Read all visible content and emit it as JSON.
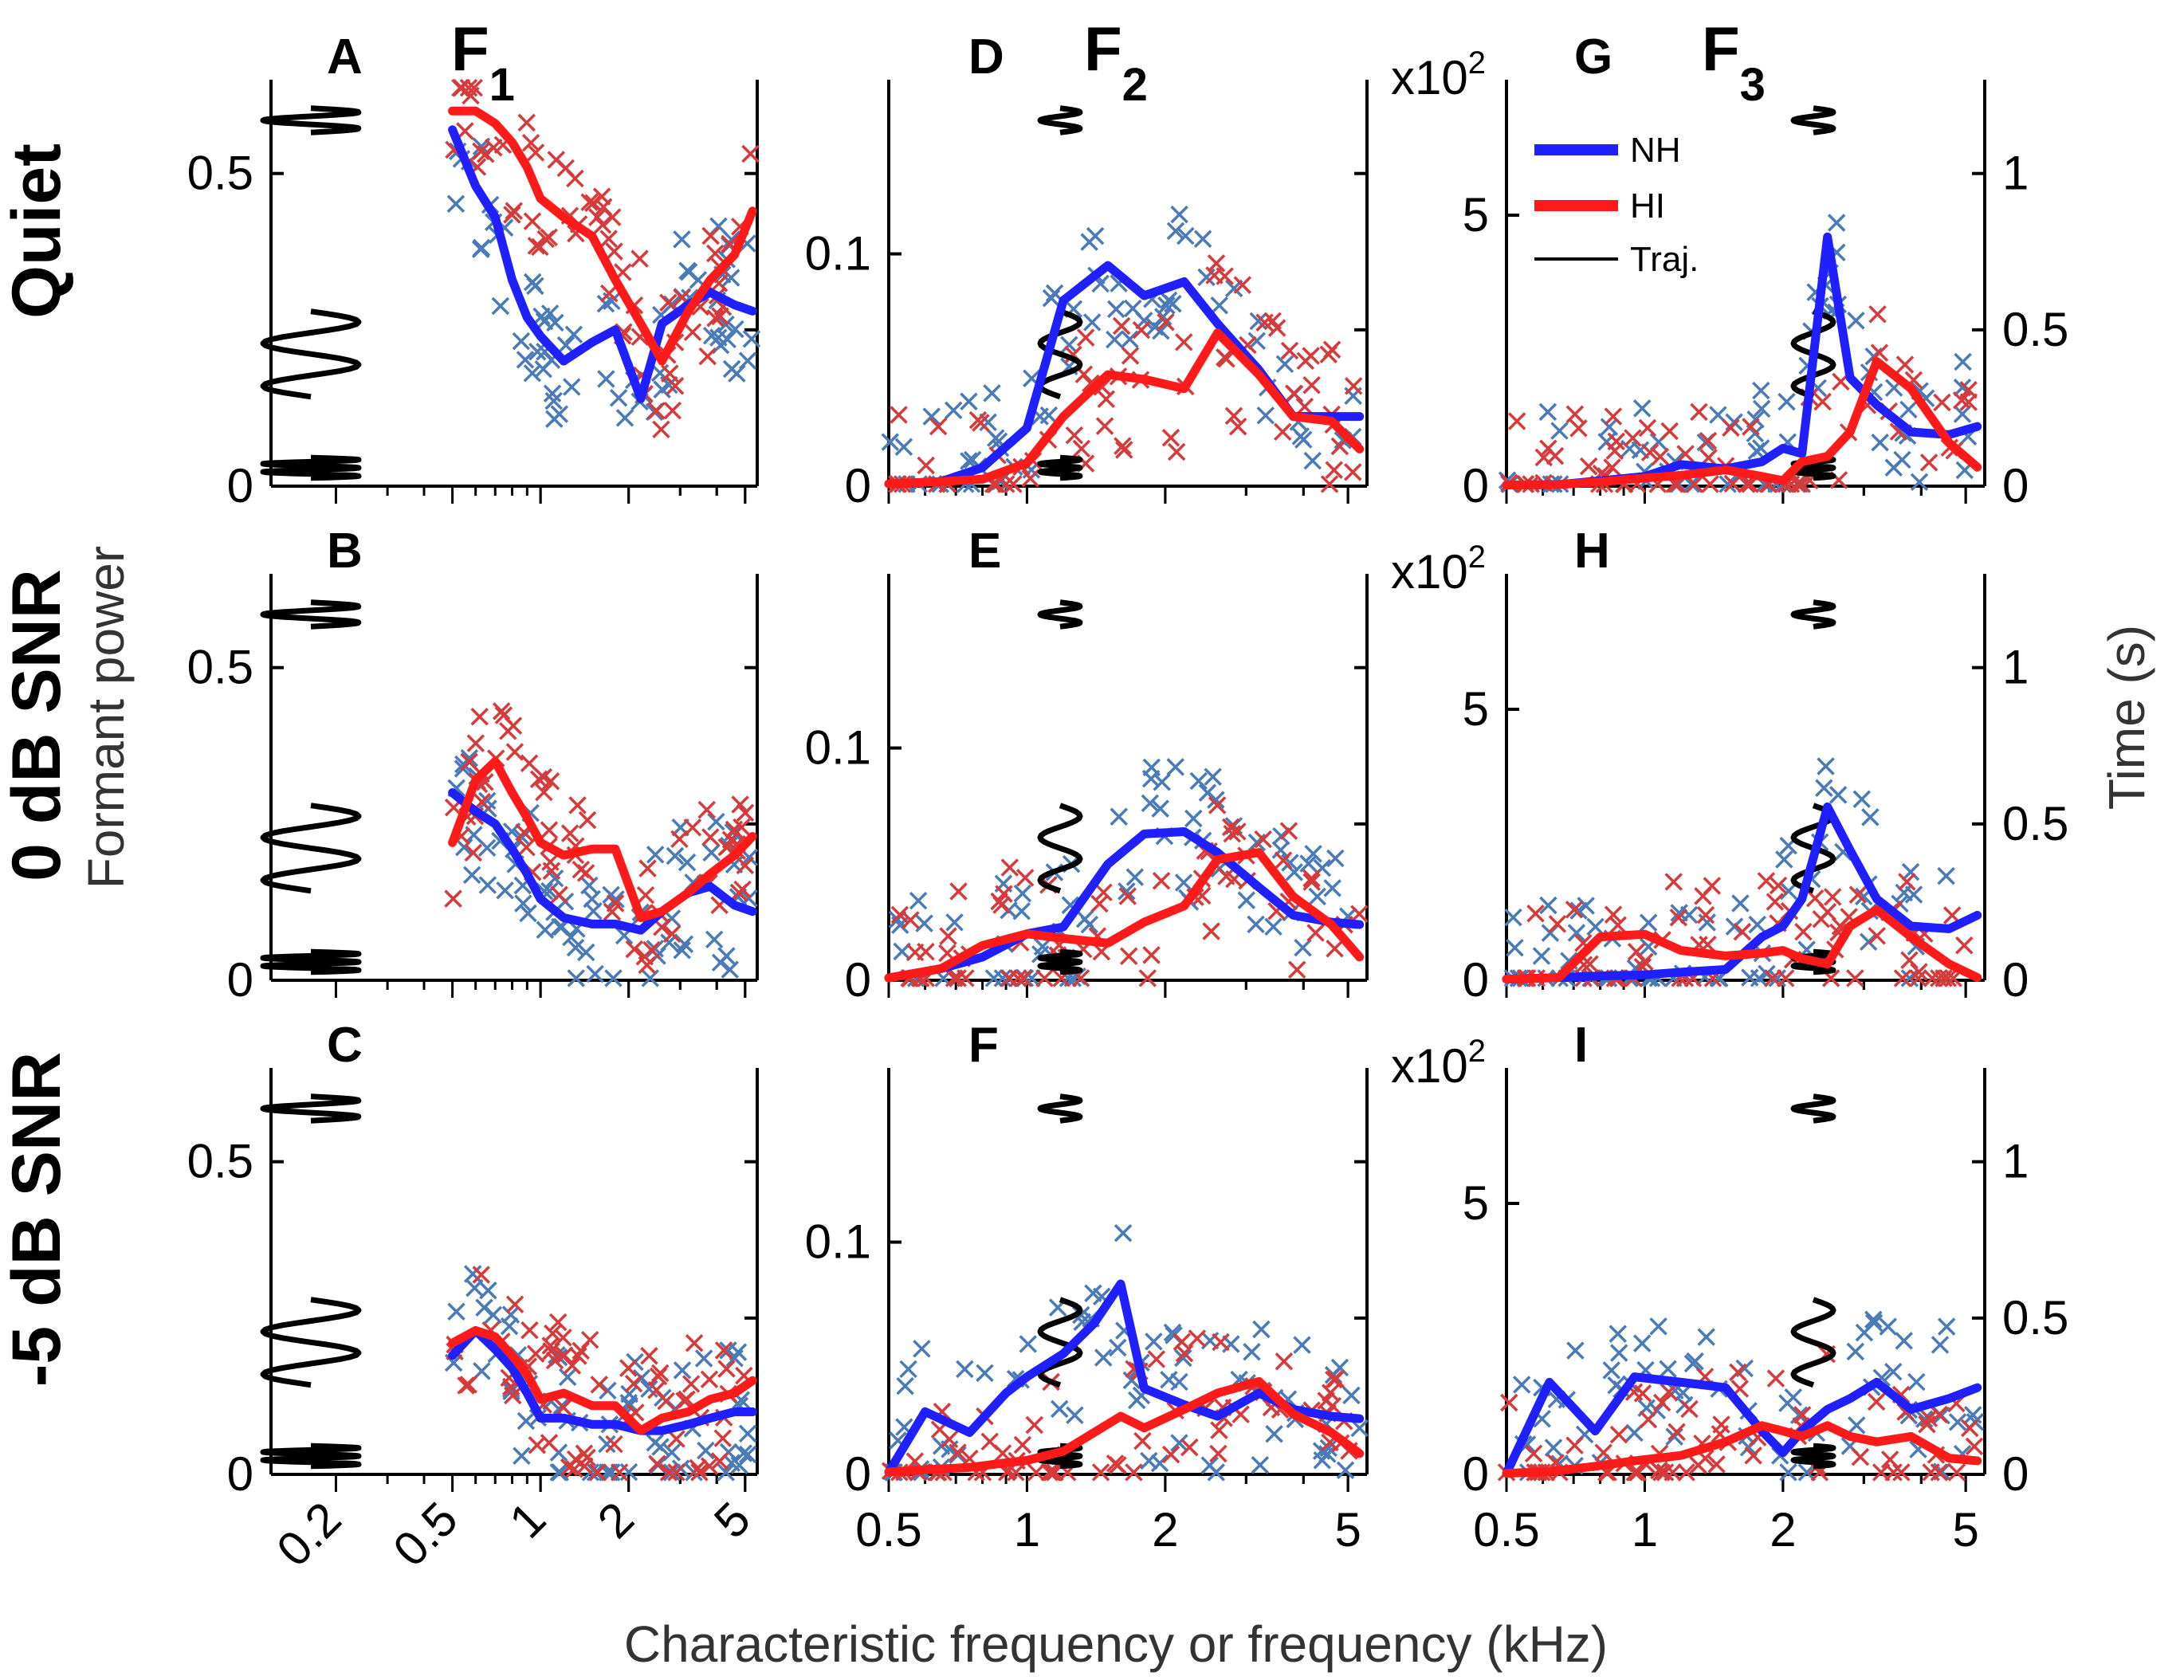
{
  "figure": {
    "row_labels": [
      "Quiet",
      "0 dB SNR",
      "-5 dB SNR"
    ],
    "column_labels": [
      {
        "main": "F",
        "sub": "1"
      },
      {
        "main": "F",
        "sub": "2"
      },
      {
        "main": "F",
        "sub": "3"
      }
    ],
    "ylabel_left": "Formant power",
    "ylabel_right": "Time (s)",
    "xlabel": "Characteristic frequency or frequency (kHz)",
    "exponent_label": "x10",
    "exponent_power": "2",
    "legend": {
      "nh": "NH",
      "hi": "HI",
      "traj": "Traj."
    },
    "colors": {
      "nh": "#1f1fff",
      "hi": "#ff1a1a",
      "nh_points": "#4a7ab8",
      "hi_points": "#d63a3a",
      "traj": "#000000"
    },
    "x_ticks": {
      "col1": [
        "0.2",
        "0.5",
        "1",
        "2",
        "5"
      ],
      "col2": [
        "0.5",
        "1",
        "2",
        "5"
      ],
      "col3": [
        "0.5",
        "1",
        "2",
        "5"
      ]
    },
    "y_ticks": {
      "col1": [
        "0",
        "0.5"
      ],
      "col2": [
        "0",
        "0.1"
      ],
      "col3": [
        "0",
        "5"
      ],
      "time": [
        "0",
        "0.5",
        "1"
      ]
    }
  },
  "chart_data": [
    {
      "id": "A",
      "type": "line",
      "letter": "A",
      "xscale": "log",
      "xlim": [
        0.12,
        5.5
      ],
      "ylim": [
        0,
        0.65
      ],
      "x": [
        0.5,
        0.6,
        0.7,
        0.8,
        0.9,
        1.0,
        1.2,
        1.5,
        1.8,
        2.2,
        2.6,
        3.2,
        3.8,
        4.6,
        5.3
      ],
      "series": [
        {
          "name": "NH",
          "values": [
            0.57,
            0.48,
            0.43,
            0.33,
            0.27,
            0.24,
            0.2,
            0.23,
            0.25,
            0.14,
            0.26,
            0.29,
            0.31,
            0.29,
            0.28
          ]
        },
        {
          "name": "HI",
          "values": [
            0.6,
            0.6,
            0.58,
            0.55,
            0.51,
            0.46,
            0.43,
            0.4,
            0.33,
            0.26,
            0.2,
            0.28,
            0.33,
            0.37,
            0.44
          ]
        }
      ]
    },
    {
      "id": "B",
      "type": "line",
      "letter": "B",
      "xscale": "log",
      "xlim": [
        0.12,
        5.5
      ],
      "ylim": [
        0,
        0.65
      ],
      "x": [
        0.5,
        0.6,
        0.7,
        0.8,
        0.9,
        1.0,
        1.2,
        1.5,
        1.8,
        2.2,
        2.6,
        3.2,
        3.8,
        4.6,
        5.3
      ],
      "series": [
        {
          "name": "NH",
          "values": [
            0.3,
            0.27,
            0.25,
            0.21,
            0.17,
            0.13,
            0.1,
            0.09,
            0.09,
            0.08,
            0.11,
            0.14,
            0.15,
            0.12,
            0.11
          ]
        },
        {
          "name": "HI",
          "values": [
            0.22,
            0.32,
            0.35,
            0.3,
            0.26,
            0.22,
            0.2,
            0.21,
            0.21,
            0.1,
            0.11,
            0.14,
            0.17,
            0.2,
            0.23
          ]
        }
      ]
    },
    {
      "id": "C",
      "type": "line",
      "letter": "C",
      "xscale": "log",
      "xlim": [
        0.12,
        5.5
      ],
      "ylim": [
        0,
        0.65
      ],
      "x": [
        0.5,
        0.6,
        0.7,
        0.8,
        0.9,
        1.0,
        1.2,
        1.5,
        1.8,
        2.2,
        2.6,
        3.2,
        3.8,
        4.6,
        5.3
      ],
      "series": [
        {
          "name": "NH",
          "values": [
            0.19,
            0.23,
            0.2,
            0.17,
            0.13,
            0.09,
            0.09,
            0.08,
            0.08,
            0.07,
            0.07,
            0.08,
            0.09,
            0.1,
            0.1
          ]
        },
        {
          "name": "HI",
          "values": [
            0.21,
            0.23,
            0.22,
            0.19,
            0.16,
            0.12,
            0.13,
            0.11,
            0.11,
            0.07,
            0.09,
            0.1,
            0.12,
            0.13,
            0.15
          ]
        }
      ]
    },
    {
      "id": "D",
      "type": "line",
      "letter": "D",
      "xscale": "log",
      "xlim": [
        0.5,
        5.5
      ],
      "ylim": [
        0,
        0.175
      ],
      "x": [
        0.5,
        0.65,
        0.8,
        1.0,
        1.2,
        1.5,
        1.8,
        2.2,
        2.6,
        3.2,
        3.8,
        4.6,
        5.3
      ],
      "series": [
        {
          "name": "NH",
          "values": [
            0.001,
            0.002,
            0.008,
            0.025,
            0.08,
            0.095,
            0.082,
            0.088,
            0.07,
            0.05,
            0.03,
            0.03,
            0.03
          ]
        },
        {
          "name": "HI",
          "values": [
            0.001,
            0.002,
            0.003,
            0.01,
            0.03,
            0.048,
            0.046,
            0.042,
            0.066,
            0.048,
            0.03,
            0.028,
            0.016
          ]
        }
      ]
    },
    {
      "id": "E",
      "type": "line",
      "letter": "E",
      "xscale": "log",
      "xlim": [
        0.5,
        5.5
      ],
      "ylim": [
        0,
        0.175
      ],
      "x": [
        0.5,
        0.65,
        0.8,
        1.0,
        1.2,
        1.5,
        1.8,
        2.2,
        2.6,
        3.2,
        3.8,
        4.6,
        5.3
      ],
      "series": [
        {
          "name": "NH",
          "values": [
            0.001,
            0.005,
            0.01,
            0.02,
            0.023,
            0.05,
            0.063,
            0.064,
            0.055,
            0.04,
            0.028,
            0.025,
            0.024
          ]
        },
        {
          "name": "HI",
          "values": [
            0.001,
            0.005,
            0.015,
            0.02,
            0.018,
            0.016,
            0.025,
            0.032,
            0.052,
            0.055,
            0.036,
            0.024,
            0.01
          ]
        }
      ]
    },
    {
      "id": "F",
      "type": "line",
      "letter": "F",
      "xscale": "log",
      "xlim": [
        0.5,
        5.5
      ],
      "ylim": [
        0,
        0.175
      ],
      "x": [
        0.5,
        0.6,
        0.75,
        0.9,
        1.0,
        1.2,
        1.4,
        1.6,
        1.8,
        2.2,
        2.6,
        3.2,
        3.8,
        4.6,
        5.3
      ],
      "series": [
        {
          "name": "NH",
          "values": [
            0.001,
            0.027,
            0.018,
            0.035,
            0.042,
            0.052,
            0.065,
            0.082,
            0.037,
            0.03,
            0.025,
            0.035,
            0.028,
            0.025,
            0.024
          ]
        },
        {
          "name": "HI",
          "values": [
            0.001,
            0.002,
            0.003,
            0.005,
            0.006,
            0.01,
            0.018,
            0.025,
            0.02,
            0.028,
            0.035,
            0.04,
            0.026,
            0.018,
            0.009
          ]
        }
      ]
    },
    {
      "id": "G",
      "type": "line",
      "letter": "G",
      "xscale": "log",
      "xlim": [
        0.5,
        5.5
      ],
      "ylim": [
        0,
        7.5
      ],
      "x": [
        0.5,
        0.65,
        0.8,
        1.0,
        1.2,
        1.5,
        1.8,
        2.0,
        2.2,
        2.5,
        2.8,
        3.2,
        3.8,
        4.6,
        5.3
      ],
      "series": [
        {
          "name": "NH",
          "values": [
            0.02,
            0.03,
            0.1,
            0.18,
            0.4,
            0.32,
            0.45,
            0.7,
            0.6,
            4.6,
            2.0,
            1.5,
            1.0,
            0.95,
            1.1
          ]
        },
        {
          "name": "HI",
          "values": [
            0.02,
            0.03,
            0.08,
            0.15,
            0.2,
            0.3,
            0.18,
            0.1,
            0.45,
            0.55,
            1.0,
            2.3,
            1.8,
            0.8,
            0.35
          ]
        }
      ]
    },
    {
      "id": "H",
      "type": "line",
      "letter": "H",
      "xscale": "log",
      "xlim": [
        0.5,
        5.5
      ],
      "ylim": [
        0,
        7.5
      ],
      "x": [
        0.5,
        0.65,
        0.8,
        1.0,
        1.2,
        1.5,
        1.8,
        2.0,
        2.2,
        2.5,
        2.8,
        3.2,
        3.8,
        4.6,
        5.3
      ],
      "series": [
        {
          "name": "NH",
          "values": [
            0.02,
            0.05,
            0.08,
            0.1,
            0.15,
            0.2,
            0.8,
            1.0,
            1.5,
            3.2,
            2.4,
            1.5,
            1.0,
            0.95,
            1.2
          ]
        },
        {
          "name": "HI",
          "values": [
            0.02,
            0.05,
            0.8,
            0.85,
            0.55,
            0.45,
            0.5,
            0.55,
            0.4,
            0.3,
            1.0,
            1.3,
            0.8,
            0.3,
            0.05
          ]
        }
      ]
    },
    {
      "id": "I",
      "type": "line",
      "letter": "I",
      "xscale": "log",
      "xlim": [
        0.5,
        5.5
      ],
      "ylim": [
        0,
        7.5
      ],
      "x": [
        0.5,
        0.62,
        0.78,
        0.95,
        1.2,
        1.5,
        1.8,
        2.0,
        2.2,
        2.5,
        2.8,
        3.2,
        3.8,
        4.6,
        5.3
      ],
      "series": [
        {
          "name": "NH",
          "values": [
            0.02,
            1.7,
            0.8,
            1.8,
            1.7,
            1.6,
            0.8,
            0.4,
            0.8,
            1.2,
            1.4,
            1.7,
            1.2,
            1.4,
            1.6
          ]
        },
        {
          "name": "HI",
          "values": [
            0.02,
            0.05,
            0.15,
            0.25,
            0.35,
            0.6,
            0.9,
            0.8,
            0.7,
            0.9,
            0.7,
            0.6,
            0.7,
            0.3,
            0.25
          ]
        }
      ]
    }
  ]
}
